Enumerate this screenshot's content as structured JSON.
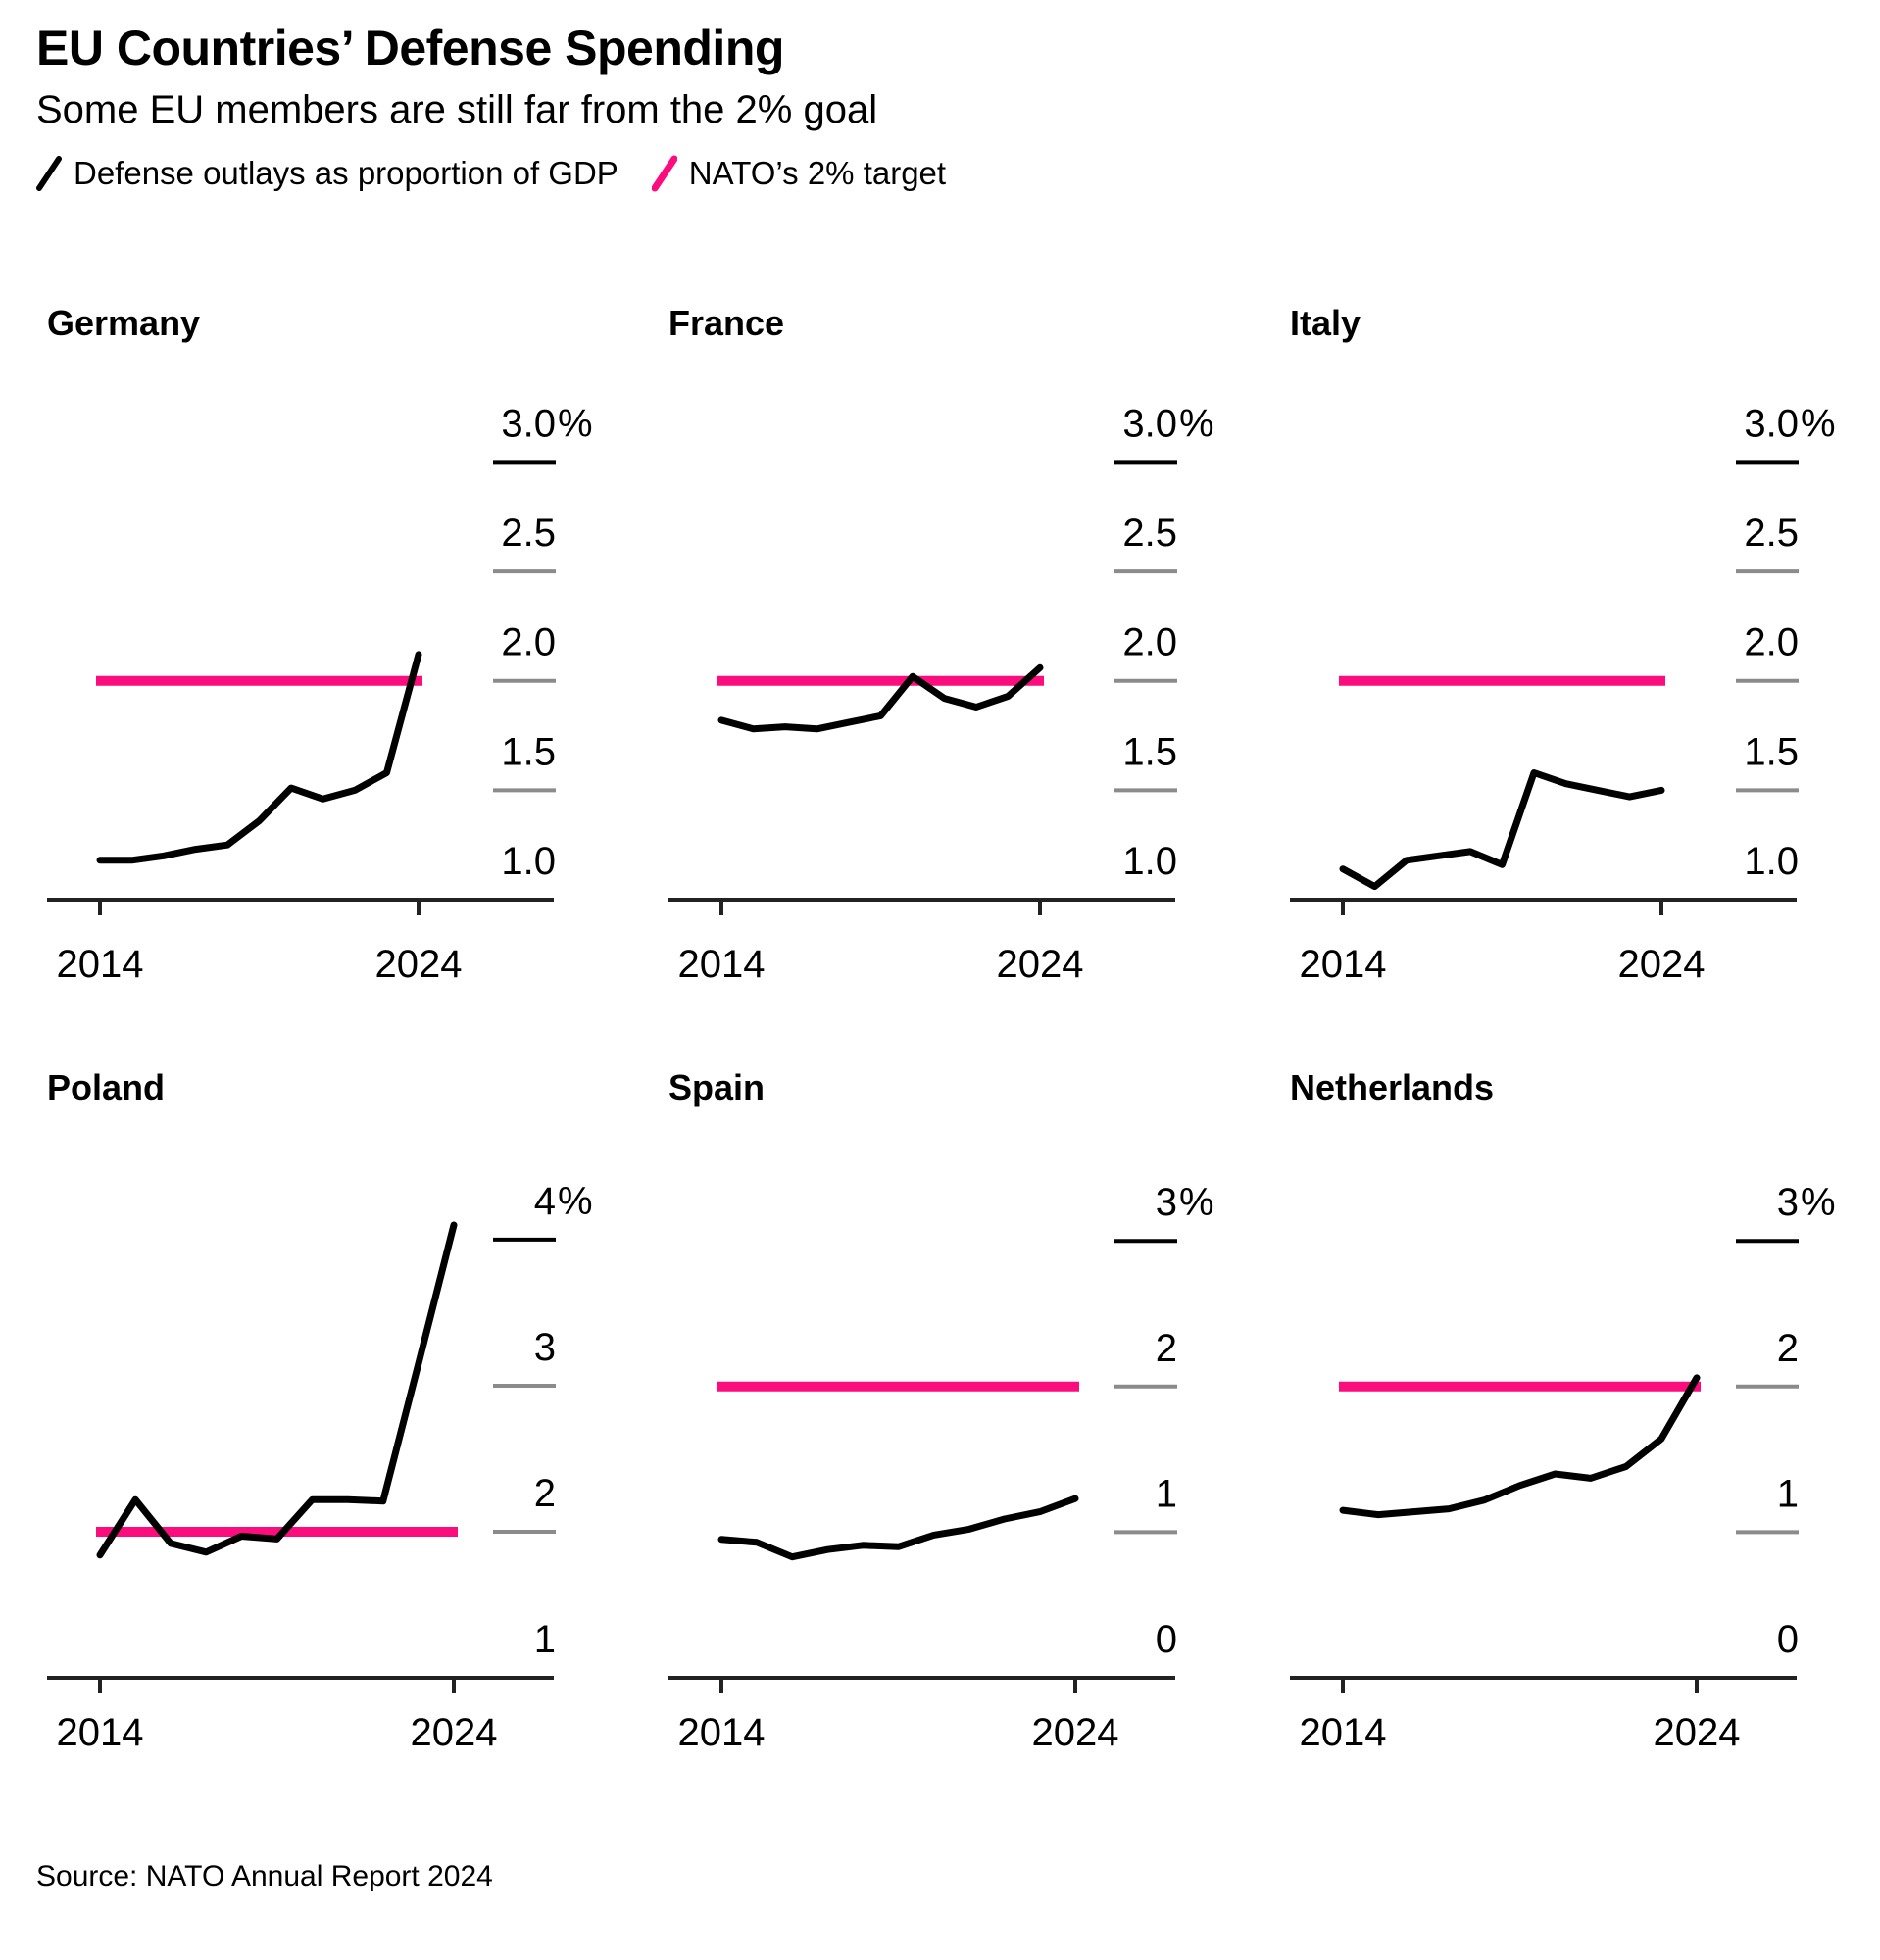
{
  "header": {
    "title": "EU Countries’ Defense Spending",
    "subtitle": "Some EU members are still far from the 2% goal",
    "legend": [
      {
        "label": "Defense outlays as proportion of GDP",
        "color": "#000000",
        "icon": "black-line-swatch"
      },
      {
        "label": "NATO’s 2% target",
        "color": "#fc0d7d",
        "icon": "pink-line-swatch"
      }
    ]
  },
  "source": "Source: NATO Annual Report 2024",
  "colors": {
    "line": "#000000",
    "target": "#fc0d7d",
    "axis": "#222222",
    "tick_gray": "#8b8b8b"
  },
  "chart_data": [
    {
      "type": "line",
      "title": "Germany",
      "row": 0,
      "x": [
        2014,
        2015,
        2016,
        2017,
        2018,
        2019,
        2020,
        2021,
        2022,
        2023,
        2024
      ],
      "x_tick_labels": [
        "2014",
        "2024"
      ],
      "series": [
        {
          "name": "Defense outlays as proportion of GDP",
          "values": [
            1.18,
            1.18,
            1.2,
            1.23,
            1.25,
            1.36,
            1.51,
            1.46,
            1.5,
            1.58,
            2.12
          ]
        }
      ],
      "target_line": {
        "name": "NATO’s 2% target",
        "value": 2.0
      },
      "ylim": [
        1.0,
        3.32
      ],
      "yticks": [
        {
          "num": "3.0",
          "suffix": "%",
          "v": 3.0
        },
        {
          "num": "2.5",
          "v": 2.5
        },
        {
          "num": "2.0",
          "v": 2.0
        },
        {
          "num": "1.5",
          "v": 1.5
        },
        {
          "num": "1.0",
          "v": 1.0
        }
      ]
    },
    {
      "type": "line",
      "title": "France",
      "row": 0,
      "x": [
        2014,
        2015,
        2016,
        2017,
        2018,
        2019,
        2020,
        2021,
        2022,
        2023,
        2024
      ],
      "x_tick_labels": [
        "2014",
        "2024"
      ],
      "series": [
        {
          "name": "Defense outlays as proportion of GDP",
          "values": [
            1.82,
            1.78,
            1.79,
            1.78,
            1.81,
            1.84,
            2.02,
            1.92,
            1.88,
            1.93,
            2.06
          ]
        }
      ],
      "target_line": {
        "name": "NATO’s 2% target",
        "value": 2.0
      },
      "ylim": [
        1.0,
        3.32
      ],
      "yticks": [
        {
          "num": "3.0",
          "suffix": "%",
          "v": 3.0
        },
        {
          "num": "2.5",
          "v": 2.5
        },
        {
          "num": "2.0",
          "v": 2.0
        },
        {
          "num": "1.5",
          "v": 1.5
        },
        {
          "num": "1.0",
          "v": 1.0
        }
      ]
    },
    {
      "type": "line",
      "title": "Italy",
      "row": 0,
      "x": [
        2014,
        2015,
        2016,
        2017,
        2018,
        2019,
        2020,
        2021,
        2022,
        2023,
        2024
      ],
      "x_tick_labels": [
        "2014",
        "2024"
      ],
      "series": [
        {
          "name": "Defense outlays as proportion of GDP",
          "values": [
            1.14,
            1.06,
            1.18,
            1.2,
            1.22,
            1.16,
            1.58,
            1.53,
            1.5,
            1.47,
            1.5
          ]
        }
      ],
      "target_line": {
        "name": "NATO’s 2% target",
        "value": 2.0
      },
      "ylim": [
        1.0,
        3.32
      ],
      "yticks": [
        {
          "num": "3.0",
          "suffix": "%",
          "v": 3.0
        },
        {
          "num": "2.5",
          "v": 2.5
        },
        {
          "num": "2.0",
          "v": 2.0
        },
        {
          "num": "1.5",
          "v": 1.5
        },
        {
          "num": "1.0",
          "v": 1.0
        }
      ]
    },
    {
      "type": "line",
      "title": "Poland",
      "row": 1,
      "x": [
        2014,
        2015,
        2016,
        2017,
        2018,
        2019,
        2020,
        2021,
        2022,
        2023,
        2024
      ],
      "x_tick_labels": [
        "2014",
        "2024"
      ],
      "series": [
        {
          "name": "Defense outlays as proportion of GDP",
          "values": [
            1.84,
            2.22,
            1.92,
            1.86,
            1.97,
            1.95,
            2.22,
            2.22,
            2.21,
            3.15,
            4.1
          ]
        }
      ],
      "target_line": {
        "name": "NATO’s 2% target",
        "value": 2.0
      },
      "ylim": [
        1.0,
        4.57
      ],
      "yticks": [
        {
          "num": "4",
          "suffix": "%",
          "v": 4.0
        },
        {
          "num": "3",
          "v": 3.0
        },
        {
          "num": "2",
          "v": 2.0
        },
        {
          "num": "1",
          "v": 1.0
        }
      ]
    },
    {
      "type": "line",
      "title": "Spain",
      "row": 1,
      "x": [
        2014,
        2015,
        2016,
        2017,
        2018,
        2019,
        2020,
        2021,
        2022,
        2023,
        2024
      ],
      "x_tick_labels": [
        "2014",
        "2024"
      ],
      "series": [
        {
          "name": "Defense outlays as proportion of GDP",
          "values": [
            0.95,
            0.93,
            0.83,
            0.88,
            0.91,
            0.9,
            0.98,
            1.02,
            1.09,
            1.14,
            1.23
          ]
        }
      ],
      "target_line": {
        "name": "NATO’s 2% target",
        "value": 2.0
      },
      "ylim": [
        0,
        3.58
      ],
      "yticks": [
        {
          "num": "3",
          "suffix": "%",
          "v": 3.0
        },
        {
          "num": "2",
          "v": 2.0
        },
        {
          "num": "1",
          "v": 1.0
        },
        {
          "num": "0",
          "v": 0
        }
      ]
    },
    {
      "type": "line",
      "title": "Netherlands",
      "row": 1,
      "x": [
        2014,
        2015,
        2016,
        2017,
        2018,
        2019,
        2020,
        2021,
        2022,
        2023,
        2024
      ],
      "x_tick_labels": [
        "2014",
        "2024"
      ],
      "series": [
        {
          "name": "Defense outlays as proportion of GDP",
          "values": [
            1.15,
            1.12,
            1.14,
            1.16,
            1.22,
            1.32,
            1.4,
            1.37,
            1.45,
            1.64,
            2.06
          ]
        }
      ],
      "target_line": {
        "name": "NATO’s 2% target",
        "value": 2.0
      },
      "ylim": [
        0,
        3.58
      ],
      "yticks": [
        {
          "num": "3",
          "suffix": "%",
          "v": 3.0
        },
        {
          "num": "2",
          "v": 2.0
        },
        {
          "num": "1",
          "v": 1.0
        },
        {
          "num": "0",
          "v": 0
        }
      ]
    }
  ]
}
